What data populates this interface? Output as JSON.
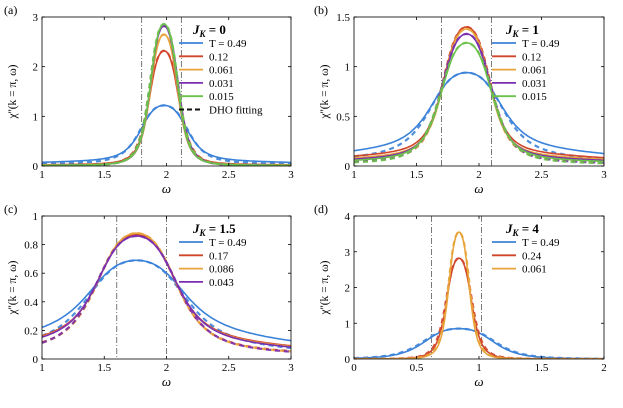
{
  "colors": {
    "T_0.49": "#3b82d9",
    "red": "#d1452a",
    "orange": "#e8a33a",
    "purple": "#7a2fb0",
    "green": "#6cc24a",
    "guide": "#7a7a7a",
    "fit": "#111111"
  },
  "chart_data": [
    {
      "panel": "(a)",
      "type": "line",
      "title": "J_K = 0",
      "title_main": "J",
      "title_sub": "K",
      "title_rest": " = 0",
      "xlabel": "ω",
      "ylabel": "χ''(k = π, ω)",
      "xlim": [
        1,
        3
      ],
      "ylim": [
        0,
        3
      ],
      "xticks": [
        1,
        1.5,
        2,
        2.5,
        3
      ],
      "xticklabels": [
        "1",
        "1.5",
        "2",
        "2.5",
        "3"
      ],
      "yticks": [
        0,
        1,
        2,
        3
      ],
      "yticklabels": [
        "0",
        "1",
        "2",
        "3"
      ],
      "vlines": [
        1.8,
        2.12
      ],
      "legend_position": "top-right",
      "fit_label": "DHO fitting",
      "peak_x": 1.98,
      "series": [
        {
          "name": "T = 0.49",
          "peak": 1.22,
          "width": 0.2,
          "tail": 0.12,
          "color_key": "T_0.49"
        },
        {
          "name": "0.12",
          "peak": 2.32,
          "width": 0.13,
          "tail": 0.04,
          "color_key": "red"
        },
        {
          "name": "0.061",
          "peak": 2.65,
          "width": 0.12,
          "tail": 0.03,
          "color_key": "orange"
        },
        {
          "name": "0.031",
          "peak": 2.82,
          "width": 0.12,
          "tail": 0.02,
          "color_key": "purple"
        },
        {
          "name": "0.015",
          "peak": 2.86,
          "width": 0.12,
          "tail": 0.02,
          "color_key": "green"
        }
      ]
    },
    {
      "panel": "(b)",
      "type": "line",
      "title": "J_K = 1",
      "title_main": "J",
      "title_sub": "K",
      "title_rest": " = 1",
      "xlabel": "ω",
      "ylabel": "χ''(k = π, ω)",
      "xlim": [
        1,
        3
      ],
      "ylim": [
        0,
        1.5
      ],
      "xticks": [
        1,
        1.5,
        2,
        2.5,
        3
      ],
      "xticklabels": [
        "1",
        "1.5",
        "2",
        "2.5",
        "3"
      ],
      "yticks": [
        0,
        0.5,
        1,
        1.5
      ],
      "yticklabels": [
        "0",
        "0.5",
        "1",
        "1.5"
      ],
      "vlines": [
        1.7,
        2.1
      ],
      "legend_position": "top-right",
      "peak_x": 1.9,
      "series": [
        {
          "name": "T = 0.49",
          "peak": 0.94,
          "width": 0.3,
          "tail": 0.22,
          "color_key": "T_0.49"
        },
        {
          "name": "0.12",
          "peak": 1.4,
          "width": 0.2,
          "tail": 0.15,
          "color_key": "red"
        },
        {
          "name": "0.061",
          "peak": 1.38,
          "width": 0.2,
          "tail": 0.12,
          "color_key": "orange"
        },
        {
          "name": "0.031",
          "peak": 1.33,
          "width": 0.21,
          "tail": 0.1,
          "color_key": "purple"
        },
        {
          "name": "0.015",
          "peak": 1.24,
          "width": 0.22,
          "tail": 0.08,
          "color_key": "green"
        }
      ]
    },
    {
      "panel": "(c)",
      "type": "line",
      "title": "J_K = 1.5",
      "title_main": "J",
      "title_sub": "K",
      "title_rest": " = 1.5",
      "xlabel": "ω",
      "ylabel": "χ''(k = π, ω)",
      "xlim": [
        1,
        3
      ],
      "ylim": [
        0,
        1
      ],
      "xticks": [
        1,
        1.5,
        2,
        2.5,
        3
      ],
      "xticklabels": [
        "1",
        "1.5",
        "2",
        "2.5",
        "3"
      ],
      "yticks": [
        0,
        0.2,
        0.4,
        0.6,
        0.8,
        1
      ],
      "yticklabels": [
        "0",
        "0.2",
        "0.4",
        "0.6",
        "0.8",
        "1"
      ],
      "vlines": [
        1.6,
        2.0
      ],
      "legend_position": "top-right",
      "peak_x": 1.76,
      "series": [
        {
          "name": "T = 0.49",
          "peak": 0.69,
          "width": 0.4,
          "tail": 0.25,
          "color_key": "T_0.49"
        },
        {
          "name": "0.17",
          "peak": 0.87,
          "width": 0.33,
          "tail": 0.18,
          "color_key": "red"
        },
        {
          "name": "0.086",
          "peak": 0.88,
          "width": 0.33,
          "tail": 0.17,
          "color_key": "orange"
        },
        {
          "name": "0.043",
          "peak": 0.86,
          "width": 0.34,
          "tail": 0.16,
          "color_key": "purple"
        }
      ]
    },
    {
      "panel": "(d)",
      "type": "line",
      "title": "J_K = 4",
      "title_main": "J",
      "title_sub": "K",
      "title_rest": " = 4",
      "xlabel": "ω",
      "ylabel": "χ''(k = π, ω)",
      "xlim": [
        0,
        2
      ],
      "ylim": [
        0,
        4
      ],
      "xticks": [
        0,
        0.5,
        1,
        1.5,
        2
      ],
      "xticklabels": [
        "0",
        "0.5",
        "1",
        "1.5",
        "2"
      ],
      "yticks": [
        0,
        1,
        2,
        3,
        4
      ],
      "yticklabels": [
        "0",
        "1",
        "2",
        "3",
        "4"
      ],
      "vlines": [
        0.62,
        1.02
      ],
      "legend_position": "top-right",
      "peak_x": 0.84,
      "series": [
        {
          "name": "T = 0.49",
          "peak": 0.85,
          "width": 0.3,
          "tail": 0.0,
          "color_key": "T_0.49"
        },
        {
          "name": "0.24",
          "peak": 2.82,
          "width": 0.11,
          "tail": 0.0,
          "color_key": "red"
        },
        {
          "name": "0.061",
          "peak": 3.55,
          "width": 0.09,
          "tail": 0.0,
          "color_key": "orange"
        }
      ]
    }
  ]
}
